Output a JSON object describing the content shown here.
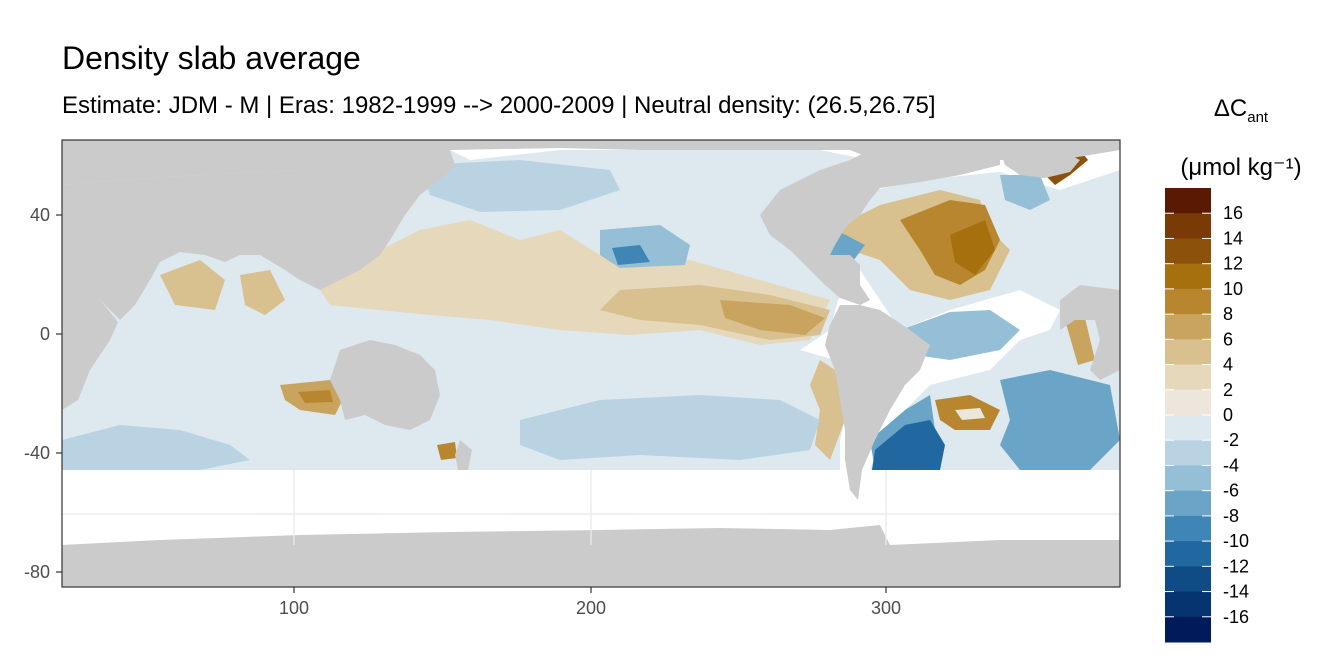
{
  "title": "Density slab average",
  "subtitle": "Estimate: JDM - M | Eras: 1982-1999 --> 2000-2009 | Neutral density: (26.5,26.75]",
  "legend": {
    "title_main": "ΔC",
    "title_sub": "ant",
    "unit": "(μmol kg⁻¹)",
    "labels": [
      "16",
      "14",
      "12",
      "10",
      "8",
      "6",
      "4",
      "2",
      "0",
      "-2",
      "-4",
      "-6",
      "-8",
      "-10",
      "-12",
      "-14",
      "-16"
    ],
    "colors": [
      "#5a1a02",
      "#7a3a05",
      "#8c510a",
      "#a6700f",
      "#b8862f",
      "#c9a45e",
      "#d8c08f",
      "#e6d8ba",
      "#ece6dc",
      "#dde8ef",
      "#b9d3e3",
      "#94bfd6",
      "#6aa5c8",
      "#3f86b6",
      "#20689f",
      "#0f4c85",
      "#063470",
      "#001a5a"
    ]
  },
  "axes": {
    "x_ticks": [
      "100",
      "200",
      "300"
    ],
    "y_ticks": [
      "40",
      "0",
      "-40",
      "-80"
    ]
  },
  "colors": {
    "land": "#cbcbcb",
    "no_data": "#ffffff",
    "grid": "#ebebeb",
    "panel_border": "#333333"
  }
}
